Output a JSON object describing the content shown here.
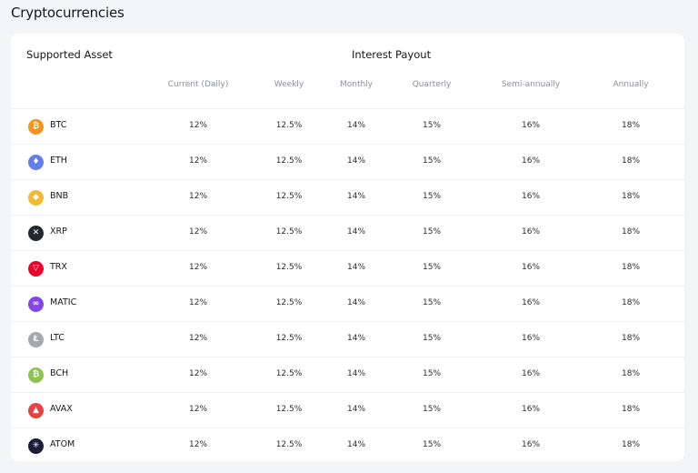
{
  "page": {
    "title": "Cryptocurrencies"
  },
  "table": {
    "supported_label": "Supported Asset",
    "payout_label": "Interest Payout",
    "columns": [
      "Current (Daily)",
      "Weekly",
      "Monthly",
      "Quarterly",
      "Semi-annually",
      "Annually"
    ],
    "rows": [
      {
        "symbol": "BTC",
        "icon": "bitcoin-icon",
        "color": "#f7931a",
        "glyph": "₿",
        "rates": [
          "12%",
          "12.5%",
          "14%",
          "15%",
          "16%",
          "18%"
        ]
      },
      {
        "symbol": "ETH",
        "icon": "ethereum-icon",
        "color": "#627eea",
        "glyph": "♦",
        "rates": [
          "12%",
          "12.5%",
          "14%",
          "15%",
          "16%",
          "18%"
        ]
      },
      {
        "symbol": "BNB",
        "icon": "bnb-icon",
        "color": "#f3ba2f",
        "glyph": "◆",
        "rates": [
          "12%",
          "12.5%",
          "14%",
          "15%",
          "16%",
          "18%"
        ]
      },
      {
        "symbol": "XRP",
        "icon": "xrp-icon",
        "color": "#23292f",
        "glyph": "✕",
        "rates": [
          "12%",
          "12.5%",
          "14%",
          "15%",
          "16%",
          "18%"
        ]
      },
      {
        "symbol": "TRX",
        "icon": "tron-icon",
        "color": "#eb0029",
        "glyph": "▽",
        "rates": [
          "12%",
          "12.5%",
          "14%",
          "15%",
          "16%",
          "18%"
        ]
      },
      {
        "symbol": "MATIC",
        "icon": "polygon-icon",
        "color": "#8247e5",
        "glyph": "∞",
        "rates": [
          "12%",
          "12.5%",
          "14%",
          "15%",
          "16%",
          "18%"
        ]
      },
      {
        "symbol": "LTC",
        "icon": "litecoin-icon",
        "color": "#a6a9aa",
        "glyph": "Ł",
        "rates": [
          "12%",
          "12.5%",
          "14%",
          "15%",
          "16%",
          "18%"
        ]
      },
      {
        "symbol": "BCH",
        "icon": "bitcoin-cash-icon",
        "color": "#8dc351",
        "glyph": "₿",
        "rates": [
          "12%",
          "12.5%",
          "14%",
          "15%",
          "16%",
          "18%"
        ]
      },
      {
        "symbol": "AVAX",
        "icon": "avalanche-icon",
        "color": "#e84142",
        "glyph": "▲",
        "rates": [
          "12%",
          "12.5%",
          "14%",
          "15%",
          "16%",
          "18%"
        ]
      },
      {
        "symbol": "ATOM",
        "icon": "cosmos-icon",
        "color": "#1b1e36",
        "glyph": "✳",
        "rates": [
          "12%",
          "12.5%",
          "14%",
          "15%",
          "16%",
          "18%"
        ]
      }
    ]
  }
}
